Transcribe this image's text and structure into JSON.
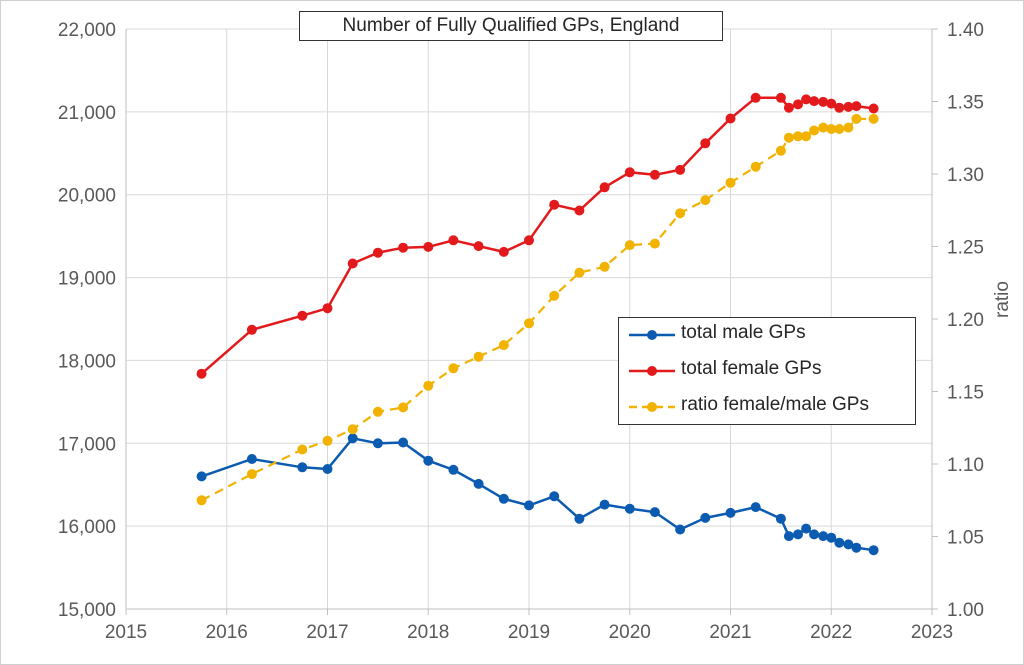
{
  "chart_data": {
    "type": "line",
    "title": "Number of Fully Qualified GPs, England",
    "xlabel": "",
    "ylabel": "",
    "y2label": "ratio",
    "xlim": [
      2015,
      2023
    ],
    "ylim": [
      15000,
      22000
    ],
    "y2lim": [
      1.0,
      1.4
    ],
    "x_ticks": [
      "2015",
      "2016",
      "2017",
      "2018",
      "2019",
      "2020",
      "2021",
      "2022",
      "2023"
    ],
    "y_ticks": [
      "15,000",
      "16,000",
      "17,000",
      "18,000",
      "19,000",
      "20,000",
      "21,000",
      "22,000"
    ],
    "y2_ticks": [
      "1.00",
      "1.05",
      "1.10",
      "1.15",
      "1.20",
      "1.25",
      "1.30",
      "1.35",
      "1.40"
    ],
    "grid": "vertical and horizontal major gridlines",
    "legend_position": "right-middle",
    "series": [
      {
        "name": "total male GPs",
        "axis": "left",
        "color": "#0b5bb0",
        "style": "solid",
        "x": [
          2015.75,
          2016.25,
          2016.75,
          2017.0,
          2017.25,
          2017.5,
          2017.75,
          2018.0,
          2018.25,
          2018.5,
          2018.75,
          2019.0,
          2019.25,
          2019.5,
          2019.75,
          2020.0,
          2020.25,
          2020.5,
          2020.75,
          2021.0,
          2021.25,
          2021.5,
          2021.58,
          2021.67,
          2021.75,
          2021.83,
          2021.92,
          2022.0,
          2022.08,
          2022.17,
          2022.25,
          2022.42
        ],
        "values": [
          16600,
          16810,
          16710,
          16690,
          17060,
          17000,
          17010,
          16790,
          16680,
          16510,
          16330,
          16250,
          16360,
          16090,
          16260,
          16210,
          16170,
          15960,
          16100,
          16160,
          16230,
          16090,
          15880,
          15900,
          15970,
          15900,
          15880,
          15860,
          15800,
          15780,
          15740,
          15710
        ]
      },
      {
        "name": "total female GPs",
        "axis": "left",
        "color": "#e31a1c",
        "style": "solid",
        "x": [
          2015.75,
          2016.25,
          2016.75,
          2017.0,
          2017.25,
          2017.5,
          2017.75,
          2018.0,
          2018.25,
          2018.5,
          2018.75,
          2019.0,
          2019.25,
          2019.5,
          2019.75,
          2020.0,
          2020.25,
          2020.5,
          2020.75,
          2021.0,
          2021.25,
          2021.5,
          2021.58,
          2021.67,
          2021.75,
          2021.83,
          2021.92,
          2022.0,
          2022.08,
          2022.17,
          2022.25,
          2022.42
        ],
        "values": [
          17840,
          18370,
          18540,
          18630,
          19170,
          19300,
          19360,
          19370,
          19450,
          19380,
          19310,
          19450,
          19880,
          19810,
          20090,
          20270,
          20240,
          20300,
          20620,
          20920,
          21170,
          21170,
          21050,
          21090,
          21150,
          21130,
          21120,
          21100,
          21050,
          21060,
          21070,
          21040
        ]
      },
      {
        "name": "ratio female/male GPs",
        "axis": "right",
        "color": "#f2b200",
        "style": "dashed",
        "x": [
          2015.75,
          2016.25,
          2016.75,
          2017.0,
          2017.25,
          2017.5,
          2017.75,
          2018.0,
          2018.25,
          2018.5,
          2018.75,
          2019.0,
          2019.25,
          2019.5,
          2019.75,
          2020.0,
          2020.25,
          2020.5,
          2020.75,
          2021.0,
          2021.25,
          2021.5,
          2021.58,
          2021.67,
          2021.75,
          2021.83,
          2021.92,
          2022.0,
          2022.08,
          2022.17,
          2022.25,
          2022.42
        ],
        "values": [
          1.075,
          1.093,
          1.11,
          1.116,
          1.124,
          1.136,
          1.139,
          1.154,
          1.166,
          1.174,
          1.182,
          1.197,
          1.216,
          1.232,
          1.236,
          1.251,
          1.252,
          1.273,
          1.282,
          1.294,
          1.305,
          1.316,
          1.325,
          1.326,
          1.326,
          1.33,
          1.332,
          1.331,
          1.331,
          1.332,
          1.338,
          1.338
        ]
      }
    ]
  }
}
